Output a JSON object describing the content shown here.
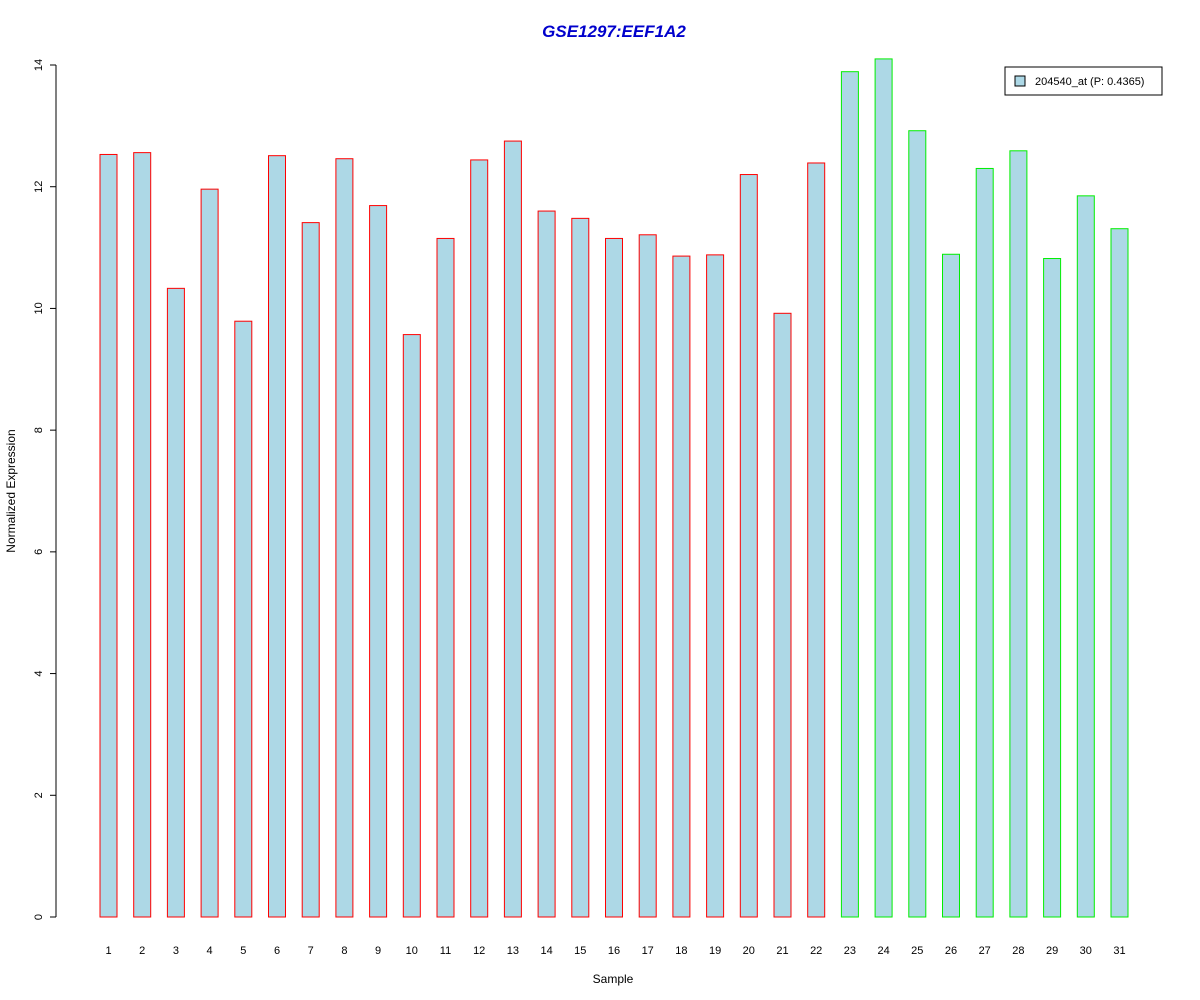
{
  "chart_data": {
    "type": "bar",
    "title": "GSE1297:EEF1A2",
    "xlabel": "Sample",
    "ylabel": "Normalized Expression",
    "ylim": [
      0,
      14
    ],
    "yticks": [
      0,
      2,
      4,
      6,
      8,
      10,
      12,
      14
    ],
    "categories": [
      "1",
      "2",
      "3",
      "4",
      "5",
      "6",
      "7",
      "8",
      "9",
      "10",
      "11",
      "12",
      "13",
      "14",
      "15",
      "16",
      "17",
      "18",
      "19",
      "20",
      "21",
      "22",
      "23",
      "24",
      "25",
      "26",
      "27",
      "28",
      "29",
      "30",
      "31"
    ],
    "series": [
      {
        "name": "204540_at (P: 0.4365)",
        "values": [
          12.53,
          12.56,
          10.33,
          11.96,
          9.79,
          12.51,
          11.41,
          12.46,
          11.69,
          9.57,
          11.15,
          12.44,
          12.75,
          11.6,
          11.48,
          11.15,
          11.21,
          10.86,
          10.88,
          12.2,
          9.92,
          12.39,
          13.89,
          14.1,
          12.92,
          10.89,
          12.3,
          12.59,
          10.82,
          11.85,
          11.31
        ]
      }
    ],
    "fill_color": "#add8e6",
    "border_colors": [
      "#ff0000",
      "#ff0000",
      "#ff0000",
      "#ff0000",
      "#ff0000",
      "#ff0000",
      "#ff0000",
      "#ff0000",
      "#ff0000",
      "#ff0000",
      "#ff0000",
      "#ff0000",
      "#ff0000",
      "#ff0000",
      "#ff0000",
      "#ff0000",
      "#ff0000",
      "#ff0000",
      "#ff0000",
      "#ff0000",
      "#ff0000",
      "#ff0000",
      "#00ee00",
      "#00ee00",
      "#00ee00",
      "#00ee00",
      "#00ee00",
      "#00ee00",
      "#00ee00",
      "#00ee00",
      "#00ee00"
    ],
    "legend": {
      "position": "top-right",
      "label": "204540_at (P: 0.4365)"
    },
    "grid": false
  }
}
